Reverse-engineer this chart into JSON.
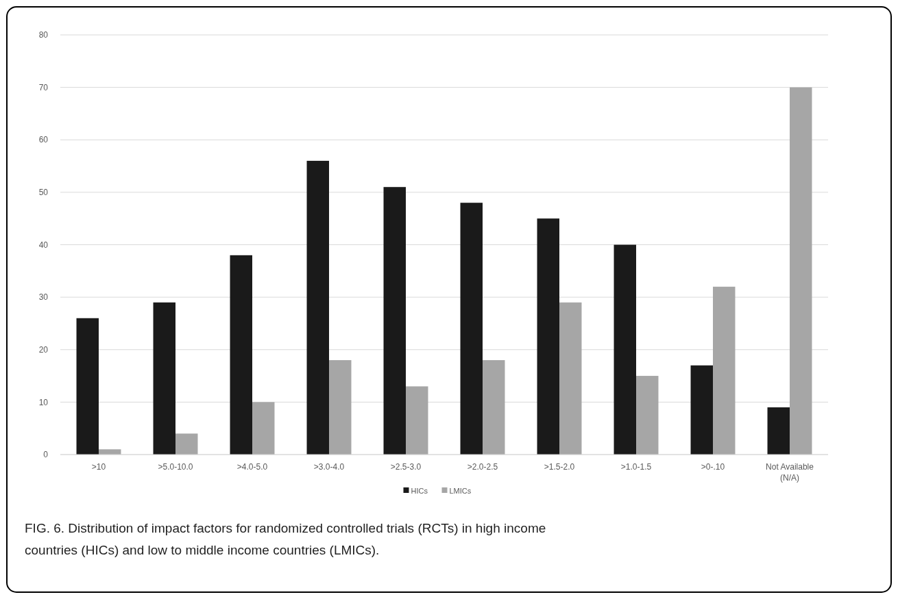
{
  "chart_data": {
    "type": "bar",
    "categories": [
      ">10",
      ">5.0-10.0",
      ">4.0-5.0",
      ">3.0-4.0",
      ">2.5-3.0",
      ">2.0-2.5",
      ">1.5-2.0",
      ">1.0-1.5",
      ">0-.10",
      "Not Available (N/A)"
    ],
    "series": [
      {
        "name": "HICs",
        "color": "#1a1a1a",
        "values": [
          26,
          29,
          38,
          56,
          51,
          48,
          45,
          40,
          17,
          9
        ]
      },
      {
        "name": "LMICs",
        "color": "#a6a6a6",
        "values": [
          1,
          4,
          10,
          18,
          13,
          18,
          29,
          15,
          32,
          70
        ]
      }
    ],
    "ylim": [
      0,
      80
    ],
    "yticks": [
      0,
      10,
      20,
      30,
      40,
      50,
      60,
      70,
      80
    ],
    "grid": "y",
    "legend": "bottom",
    "annotations": [
      "FIG. 6.    Distribution of impact factors for randomized controlled trials (RCTs) in high income countries (HICs) and low to middle income countries (LMICs)."
    ]
  }
}
